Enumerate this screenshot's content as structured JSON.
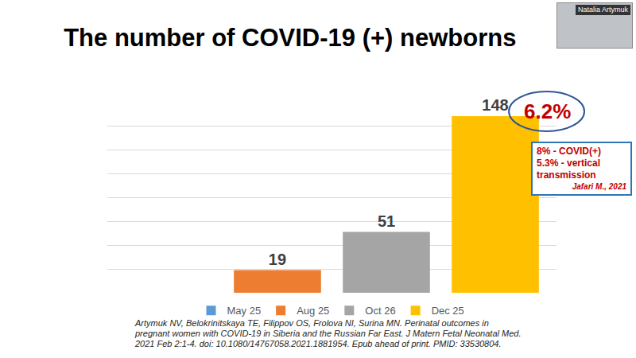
{
  "chart_data": {
    "type": "bar",
    "title": "The number of COVID-19 (+) newborns",
    "categories": [
      null
    ],
    "series": [
      {
        "name": "May 25",
        "color": "#5b9bd5",
        "values": [
          null
        ]
      },
      {
        "name": "Aug 25",
        "color": "#ed7d31",
        "values": [
          19
        ]
      },
      {
        "name": "Oct 26",
        "color": "#a5a5a5",
        "values": [
          51
        ]
      },
      {
        "name": "Dec 25",
        "color": "#ffc000",
        "values": [
          148
        ]
      }
    ],
    "ylim": [
      0,
      160
    ],
    "yticks": [
      0,
      20,
      40,
      60,
      80,
      100,
      120,
      140,
      160
    ],
    "grid": true,
    "tick_labels": false,
    "data_labels": true,
    "legend": "bottom",
    "annotations": [
      "6.2%"
    ],
    "note_box": [
      "8% - COVID(+)",
      "5.3% - vertical transmission",
      "Jafari M., 2021"
    ],
    "source": "Artymuk NV, Belokrinitskaya TE, Filippov OS, Frolova NI, Surina MN. Perinatal outcomes in pregnant women with COVID-19 in Siberia and the Russian Far East. J Matern Fetal Neonatal Med. 2021 Feb 2:1-4. doi: 10.1080/14767058.2021.1881954. Epub ahead of print. PMID: 33530804.",
    "presenter": "Natalia Artymuk"
  }
}
